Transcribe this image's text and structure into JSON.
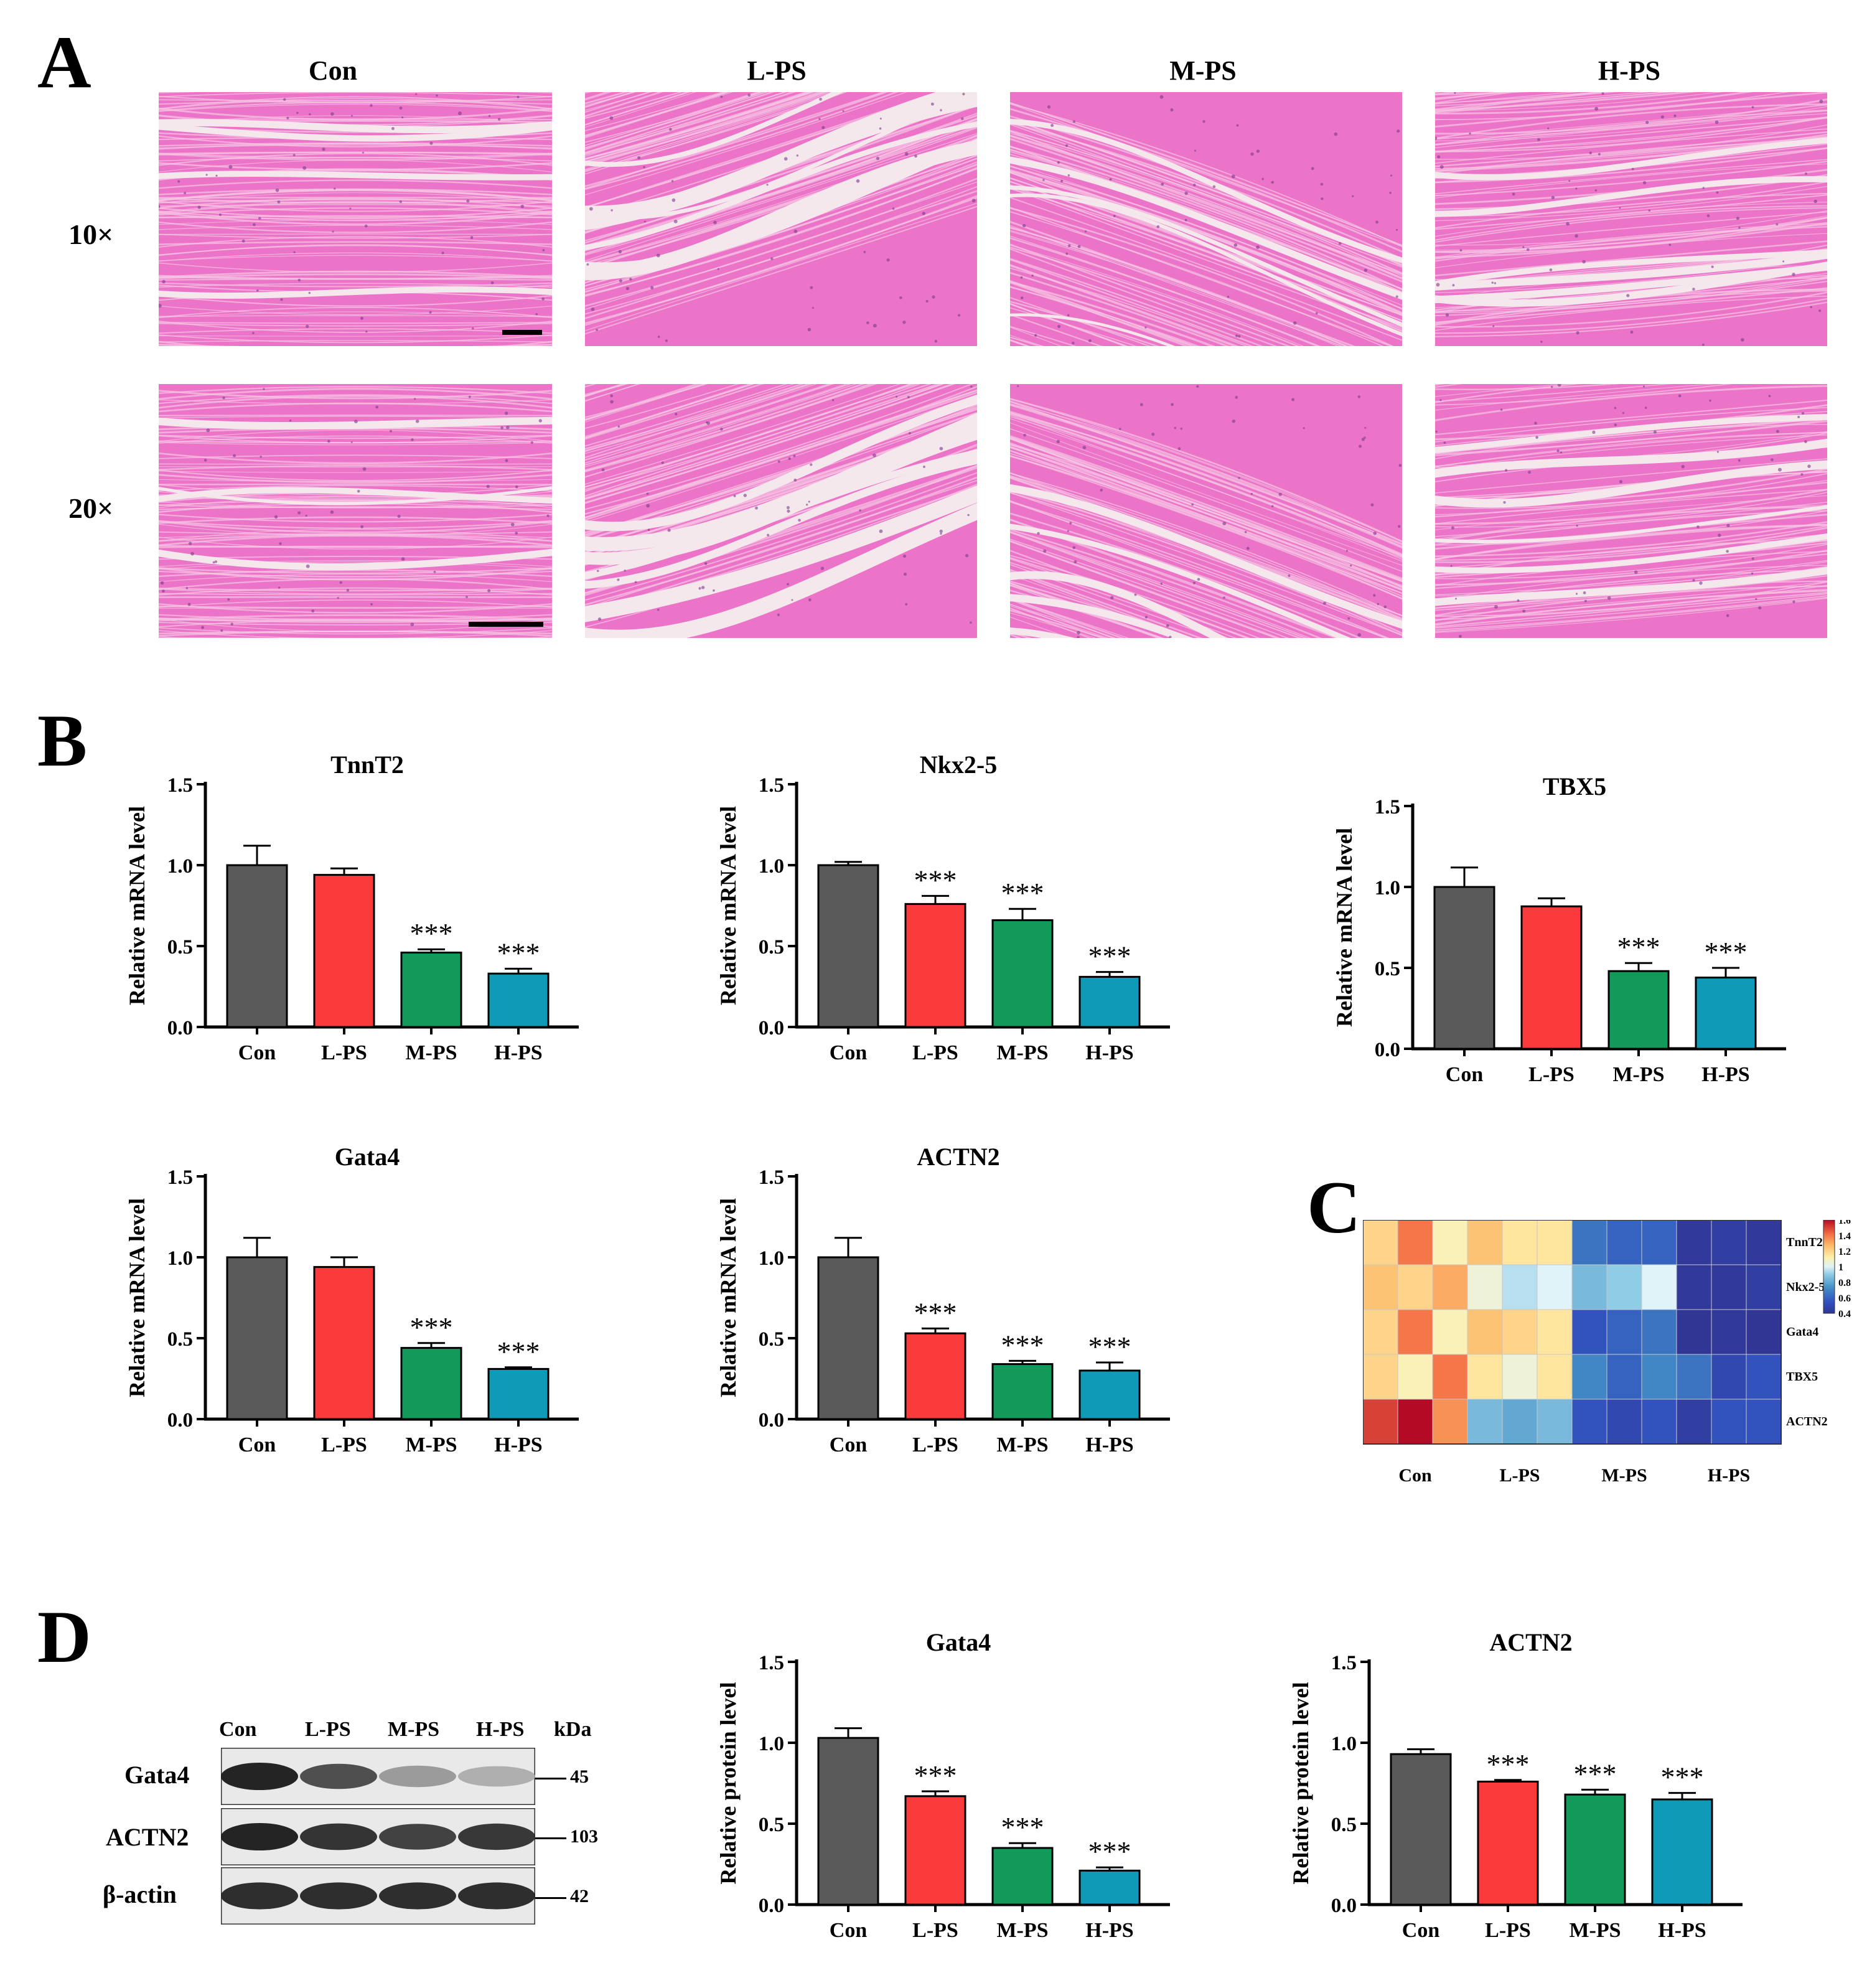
{
  "panels": {
    "A": "A",
    "B": "B",
    "C": "C",
    "D": "D"
  },
  "histology": {
    "columns": [
      "Con",
      "L-PS",
      "M-PS",
      "H-PS"
    ],
    "rows": [
      "10×",
      "20×"
    ]
  },
  "colors": {
    "Con": "#5a5a5a",
    "L-PS": "#fb3b3b",
    "M-PS": "#119a5a",
    "H-PS": "#0f9bb8",
    "tissue": "#ec74c8",
    "tissue_light": "#f6c6e4",
    "gap": "#f4e8ec"
  },
  "chart_data": [
    {
      "id": "tnnt2",
      "type": "bar",
      "title": "TnnT2",
      "ylabel": "Relative mRNA level",
      "xlabel": "",
      "categories": [
        "Con",
        "L-PS",
        "M-PS",
        "H-PS"
      ],
      "values": [
        1.0,
        0.94,
        0.46,
        0.33
      ],
      "errors": [
        0.12,
        0.04,
        0.02,
        0.03
      ],
      "significance": [
        "",
        "",
        "***",
        "***"
      ],
      "ylim": [
        0,
        1.5
      ],
      "yticks": [
        "0.0",
        "0.5",
        "1.0",
        "1.5"
      ]
    },
    {
      "id": "nkx25",
      "type": "bar",
      "title": "Nkx2-5",
      "ylabel": "Relative mRNA level",
      "xlabel": "",
      "categories": [
        "Con",
        "L-PS",
        "M-PS",
        "H-PS"
      ],
      "values": [
        1.0,
        0.76,
        0.66,
        0.31
      ],
      "errors": [
        0.02,
        0.05,
        0.07,
        0.03
      ],
      "significance": [
        "",
        "***",
        "***",
        "***"
      ],
      "ylim": [
        0,
        1.5
      ],
      "yticks": [
        "0.0",
        "0.5",
        "1.0",
        "1.5"
      ]
    },
    {
      "id": "tbx5",
      "type": "bar",
      "title": "TBX5",
      "ylabel": "Relative mRNA level",
      "xlabel": "",
      "categories": [
        "Con",
        "L-PS",
        "M-PS",
        "H-PS"
      ],
      "values": [
        1.0,
        0.88,
        0.48,
        0.44
      ],
      "errors": [
        0.12,
        0.05,
        0.05,
        0.06
      ],
      "significance": [
        "",
        "",
        "***",
        "***"
      ],
      "ylim": [
        0,
        1.5
      ],
      "yticks": [
        "0.0",
        "0.5",
        "1.0",
        "1.5"
      ]
    },
    {
      "id": "gata4_mrna",
      "type": "bar",
      "title": "Gata4",
      "ylabel": "Relative mRNA level",
      "xlabel": "",
      "categories": [
        "Con",
        "L-PS",
        "M-PS",
        "H-PS"
      ],
      "values": [
        1.0,
        0.94,
        0.44,
        0.31
      ],
      "errors": [
        0.12,
        0.06,
        0.03,
        0.01
      ],
      "significance": [
        "",
        "",
        "***",
        "***"
      ],
      "ylim": [
        0,
        1.5
      ],
      "yticks": [
        "0.0",
        "0.5",
        "1.0",
        "1.5"
      ]
    },
    {
      "id": "actn2_mrna",
      "type": "bar",
      "title": "ACTN2",
      "ylabel": "Relative mRNA level",
      "xlabel": "",
      "categories": [
        "Con",
        "L-PS",
        "M-PS",
        "H-PS"
      ],
      "values": [
        1.0,
        0.53,
        0.34,
        0.3
      ],
      "errors": [
        0.12,
        0.03,
        0.02,
        0.05
      ],
      "significance": [
        "",
        "***",
        "***",
        "***"
      ],
      "ylim": [
        0,
        1.5
      ],
      "yticks": [
        "0.0",
        "0.5",
        "1.0",
        "1.5"
      ]
    },
    {
      "id": "heatmap",
      "type": "heatmap",
      "title": "",
      "rows": [
        "TnnT2",
        "Nkx2-5",
        "Gata4",
        "TBX5",
        "ACTN2"
      ],
      "groups": [
        "Con",
        "L-PS",
        "M-PS",
        "H-PS"
      ],
      "values": [
        [
          1.2,
          1.4,
          1.1,
          1.25,
          1.15,
          1.15,
          0.65,
          0.6,
          0.6,
          0.42,
          0.45,
          0.42
        ],
        [
          1.25,
          1.2,
          1.3,
          1.05,
          0.95,
          1.0,
          0.85,
          0.9,
          1.0,
          0.42,
          0.42,
          0.45
        ],
        [
          1.2,
          1.4,
          1.1,
          1.25,
          1.2,
          1.15,
          0.55,
          0.6,
          0.65,
          0.4,
          0.42,
          0.4
        ],
        [
          1.2,
          1.1,
          1.4,
          1.15,
          1.05,
          1.15,
          0.7,
          0.6,
          0.7,
          0.65,
          0.5,
          0.55
        ],
        [
          1.5,
          1.62,
          1.35,
          0.85,
          0.8,
          0.85,
          0.55,
          0.5,
          0.55,
          0.45,
          0.55,
          0.55
        ]
      ],
      "scale": {
        "min": 0.4,
        "max": 1.6,
        "ticks": [
          "1.6",
          "1.4",
          "1.2",
          "1",
          "0.8",
          "0.6",
          "0.4"
        ]
      }
    },
    {
      "id": "gata4_protein",
      "type": "bar",
      "title": "Gata4",
      "ylabel": "Relative protein level",
      "xlabel": "",
      "categories": [
        "Con",
        "L-PS",
        "M-PS",
        "H-PS"
      ],
      "values": [
        1.03,
        0.67,
        0.35,
        0.21
      ],
      "errors": [
        0.06,
        0.03,
        0.03,
        0.02
      ],
      "significance": [
        "",
        "***",
        "***",
        "***"
      ],
      "ylim": [
        0,
        1.5
      ],
      "yticks": [
        "0.0",
        "0.5",
        "1.0",
        "1.5"
      ]
    },
    {
      "id": "actn2_protein",
      "type": "bar",
      "title": "ACTN2",
      "ylabel": "Relative protein level",
      "xlabel": "",
      "categories": [
        "Con",
        "L-PS",
        "M-PS",
        "H-PS"
      ],
      "values": [
        0.93,
        0.76,
        0.68,
        0.65
      ],
      "errors": [
        0.03,
        0.01,
        0.03,
        0.04
      ],
      "significance": [
        "",
        "***",
        "***",
        "***"
      ],
      "ylim": [
        0,
        1.5
      ],
      "yticks": [
        "0.0",
        "0.5",
        "1.0",
        "1.5"
      ]
    }
  ],
  "western": {
    "columns": [
      "Con",
      "L-PS",
      "M-PS",
      "H-PS"
    ],
    "kda_label": "kDa",
    "blots": [
      {
        "label": "Gata4",
        "kda": "45",
        "intensity": [
          1.0,
          0.78,
          0.4,
          0.3
        ]
      },
      {
        "label": "ACTN2",
        "kda": "103",
        "intensity": [
          1.0,
          0.92,
          0.85,
          0.9
        ]
      },
      {
        "label": "β-actin",
        "kda": "42",
        "intensity": [
          0.95,
          0.95,
          0.95,
          0.95
        ]
      }
    ]
  }
}
